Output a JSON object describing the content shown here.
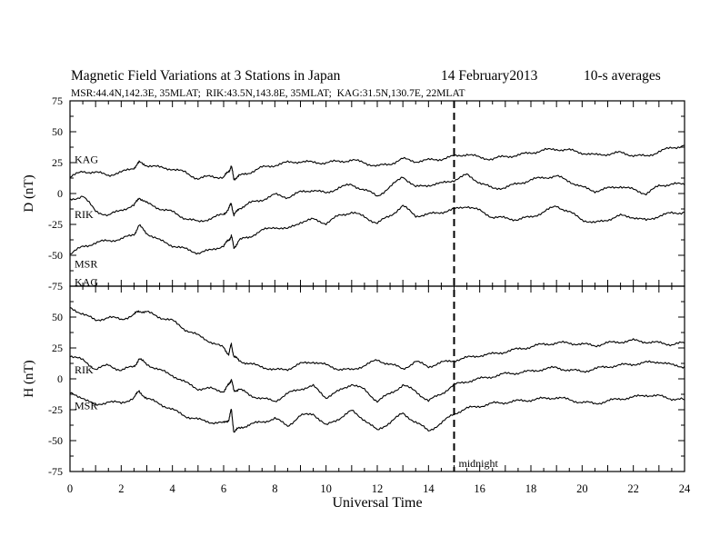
{
  "chart_data": {
    "type": "line",
    "title": "Magnetic Field Variations at 3 Stations in Japan",
    "date": "14 February2013",
    "averaging": "10-s averages",
    "subtitle": "MSR:44.4N,142.3E, 35MLAT;  RIK:43.5N,143.8E, 35MLAT;  KAG:31.5N,130.7E, 22MLAT",
    "xlabel": "Universal Time",
    "xlim": [
      0,
      24
    ],
    "xticks": [
      "0",
      "2",
      "4",
      "6",
      "8",
      "10",
      "12",
      "14",
      "16",
      "18",
      "20",
      "22",
      "24"
    ],
    "annotation": {
      "label": "midnight",
      "x": 15
    },
    "panels": [
      {
        "id": "D",
        "ylabel": "D (nT)",
        "ylim": [
          -75,
          75
        ],
        "yticks": [
          "75",
          "50",
          "25",
          "0",
          "-25",
          "-50",
          "-75"
        ],
        "series": [
          {
            "name": "KAG",
            "x": [
              0,
              0.5,
              1,
              1.5,
              2,
              2.5,
              2.7,
              3,
              3.5,
              4,
              4.5,
              5,
              5.5,
              6,
              6.2,
              6.3,
              6.4,
              6.6,
              7,
              7.5,
              8,
              8.5,
              9,
              9.5,
              10,
              10.5,
              11,
              11.5,
              12,
              12.5,
              13,
              13.5,
              14,
              14.5,
              15,
              15.5,
              16,
              16.5,
              17,
              17.5,
              18,
              18.5,
              19,
              19.5,
              20,
              20.5,
              21,
              21.5,
              22,
              22.5,
              23,
              23.5,
              24
            ],
            "y": [
              13,
              18,
              17,
              15,
              17,
              21,
              25,
              23,
              21,
              20,
              17,
              12,
              14,
              13,
              18,
              22,
              12,
              14,
              17,
              21,
              23,
              25,
              26,
              25,
              25,
              26,
              27,
              25,
              22,
              24,
              28,
              26,
              27,
              28,
              30,
              32,
              29,
              28,
              30,
              31,
              33,
              35,
              36,
              35,
              33,
              31,
              32,
              33,
              31,
              30,
              34,
              37,
              39
            ]
          },
          {
            "name": "RIK",
            "x": [
              0,
              0.5,
              1,
              1.5,
              2,
              2.5,
              2.7,
              3,
              3.5,
              4,
              4.5,
              5,
              5.5,
              6,
              6.2,
              6.3,
              6.4,
              6.6,
              7,
              7.5,
              8,
              8.5,
              9,
              9.5,
              10,
              10.5,
              11,
              11.5,
              12,
              12.5,
              13,
              13.5,
              14,
              14.5,
              15,
              15.5,
              16,
              16.5,
              17,
              17.5,
              18,
              18.5,
              19,
              19.5,
              20,
              20.5,
              21,
              21.5,
              22,
              22.5,
              23,
              23.5,
              24
            ],
            "y": [
              -5,
              -2,
              -14,
              -18,
              -13,
              -10,
              -3,
              -8,
              -12,
              -15,
              -20,
              -23,
              -20,
              -17,
              -12,
              -8,
              -18,
              -12,
              -8,
              -5,
              -1,
              -3,
              1,
              3,
              0,
              5,
              7,
              3,
              -2,
              5,
              14,
              5,
              7,
              8,
              11,
              15,
              9,
              4,
              5,
              8,
              11,
              13,
              14,
              10,
              5,
              2,
              4,
              6,
              3,
              0,
              6,
              8,
              7
            ]
          },
          {
            "name": "MSR",
            "x": [
              0,
              0.5,
              1,
              1.5,
              2,
              2.5,
              2.7,
              3,
              3.5,
              4,
              4.5,
              5,
              5.5,
              6,
              6.2,
              6.3,
              6.4,
              6.6,
              7,
              7.5,
              8,
              8.5,
              9,
              9.5,
              10,
              10.5,
              11,
              11.5,
              12,
              12.5,
              13,
              13.5,
              14,
              14.5,
              15,
              15.5,
              16,
              16.5,
              17,
              17.5,
              18,
              18.5,
              19,
              19.5,
              20,
              20.5,
              21,
              21.5,
              22,
              22.5,
              23,
              23.5,
              24
            ],
            "y": [
              -49,
              -43,
              -40,
              -38,
              -37,
              -33,
              -26,
              -32,
              -38,
              -42,
              -45,
              -48,
              -46,
              -42,
              -38,
              -34,
              -44,
              -38,
              -35,
              -30,
              -27,
              -29,
              -23,
              -21,
              -24,
              -18,
              -15,
              -19,
              -24,
              -18,
              -10,
              -18,
              -17,
              -15,
              -13,
              -10,
              -14,
              -19,
              -20,
              -21,
              -19,
              -15,
              -10,
              -15,
              -21,
              -24,
              -21,
              -18,
              -19,
              -22,
              -18,
              -16,
              -15
            ]
          }
        ]
      },
      {
        "id": "H",
        "ylabel": "H (nT)",
        "ylim": [
          -75,
          75
        ],
        "yticks": [
          "75",
          "50",
          "25",
          "0",
          "-25",
          "-50",
          "-75"
        ],
        "series": [
          {
            "name": "KAG",
            "x": [
              0,
              0.5,
              1,
              1.5,
              2,
              2.5,
              2.7,
              3,
              3.5,
              4,
              4.5,
              5,
              5.5,
              6,
              6.2,
              6.3,
              6.4,
              6.6,
              7,
              7.5,
              8,
              8.5,
              9,
              9.5,
              10,
              10.5,
              11,
              11.5,
              12,
              12.5,
              13,
              13.5,
              14,
              14.5,
              15,
              15.5,
              16,
              16.5,
              17,
              17.5,
              18,
              18.5,
              19,
              19.5,
              20,
              20.5,
              21,
              21.5,
              22,
              22.5,
              23,
              23.5,
              24
            ],
            "y": [
              57,
              53,
              47,
              50,
              48,
              52,
              55,
              54,
              50,
              47,
              40,
              35,
              30,
              25,
              20,
              28,
              18,
              15,
              12,
              10,
              7,
              8,
              12,
              14,
              11,
              8,
              7,
              11,
              15,
              12,
              8,
              14,
              10,
              13,
              15,
              17,
              19,
              20,
              22,
              24,
              26,
              28,
              29,
              29,
              28,
              27,
              29,
              30,
              31,
              30,
              29,
              28,
              29
            ]
          },
          {
            "name": "RIK",
            "x": [
              0,
              0.5,
              1,
              1.5,
              2,
              2.5,
              2.7,
              3,
              3.5,
              4,
              4.5,
              5,
              5.5,
              6,
              6.2,
              6.3,
              6.4,
              6.6,
              7,
              7.5,
              8,
              8.5,
              9,
              9.5,
              10,
              10.5,
              11,
              11.5,
              12,
              12.5,
              13,
              13.5,
              14,
              14.5,
              15,
              15.5,
              16,
              16.5,
              17,
              17.5,
              18,
              18.5,
              19,
              19.5,
              20,
              20.5,
              21,
              21.5,
              22,
              22.5,
              23,
              23.5,
              24
            ],
            "y": [
              19,
              15,
              8,
              11,
              7,
              10,
              16,
              12,
              7,
              3,
              -3,
              -8,
              -8,
              -10,
              -5,
              0,
              -10,
              -8,
              -13,
              -16,
              -18,
              -12,
              -8,
              -6,
              -15,
              -10,
              -4,
              -9,
              -18,
              -12,
              -5,
              -10,
              -18,
              -12,
              -5,
              -2,
              0,
              2,
              4,
              5,
              6,
              8,
              9,
              7,
              6,
              8,
              10,
              11,
              12,
              13,
              14,
              11,
              10
            ]
          },
          {
            "name": "MSR",
            "x": [
              0,
              0.5,
              1,
              1.5,
              2,
              2.5,
              2.7,
              3,
              3.5,
              4,
              4.5,
              5,
              5.5,
              6,
              6.2,
              6.3,
              6.4,
              6.6,
              7,
              7.5,
              8,
              8.5,
              9,
              9.5,
              10,
              10.5,
              11,
              11.5,
              12,
              12.5,
              13,
              13.5,
              14,
              14.5,
              15,
              15.5,
              16,
              16.5,
              17,
              17.5,
              18,
              18.5,
              19,
              19.5,
              20,
              20.5,
              21,
              21.5,
              22,
              22.5,
              23,
              23.5,
              24
            ],
            "y": [
              -12,
              -15,
              -22,
              -18,
              -20,
              -15,
              -10,
              -16,
              -20,
              -25,
              -30,
              -33,
              -35,
              -36,
              -33,
              -25,
              -43,
              -40,
              -37,
              -35,
              -32,
              -38,
              -30,
              -28,
              -38,
              -32,
              -26,
              -33,
              -42,
              -35,
              -28,
              -35,
              -42,
              -36,
              -28,
              -24,
              -22,
              -20,
              -19,
              -18,
              -17,
              -16,
              -15,
              -17,
              -19,
              -20,
              -18,
              -16,
              -15,
              -13,
              -14,
              -16,
              -17
            ]
          }
        ]
      }
    ]
  }
}
